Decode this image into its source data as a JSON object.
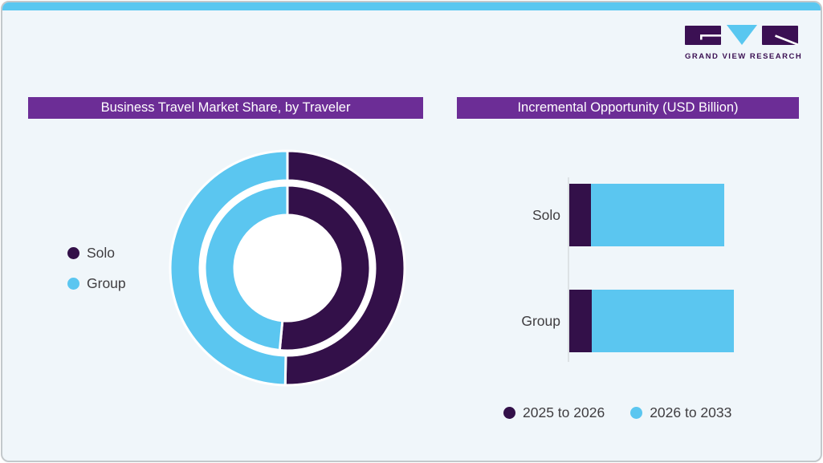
{
  "brand": {
    "name": "GRAND VIEW RESEARCH",
    "logo_icon": "gvr-logo"
  },
  "theme": {
    "background": "#f0f6fa",
    "card_border": "#c3c8cb",
    "top_strip": "#59c7f0",
    "header_bg": "#6c2d96",
    "header_text": "#ffffff",
    "dark_purple": "#331049",
    "light_blue": "#5bc6f0",
    "logo_purple": "#3b1053",
    "label_text": "#3f3d40",
    "axis_line": "#dde2e5"
  },
  "left_chart": {
    "title": "Business Travel Market Share, by Traveler",
    "legend": [
      {
        "label": "Solo",
        "color": "#331049"
      },
      {
        "label": "Group",
        "color": "#5bc6f0"
      }
    ]
  },
  "right_chart": {
    "title": "Incremental Opportunity (USD Billion)",
    "categories": [
      "Solo",
      "Group"
    ],
    "legend": [
      {
        "label": "2025 to 2026",
        "color": "#331049"
      },
      {
        "label": "2026 to 2033",
        "color": "#5bc6f0"
      }
    ]
  },
  "chart_data": [
    {
      "type": "donut",
      "title": "Business Travel Market Share, by Traveler",
      "segments": [
        "Solo",
        "Group"
      ],
      "colors": [
        "#331049",
        "#5bc6f0"
      ],
      "legend_position": "left",
      "rings": [
        {
          "name": "outer",
          "values": [
            50.3,
            49.7
          ]
        },
        {
          "name": "inner",
          "values": [
            51.5,
            48.5
          ]
        }
      ]
    },
    {
      "type": "stacked-bar-horizontal",
      "title": "Incremental Opportunity (USD Billion)",
      "categories": [
        "Solo",
        "Group"
      ],
      "series": [
        {
          "name": "2025 to 2026",
          "color": "#331049",
          "values": [
            13.3,
            13.8
          ]
        },
        {
          "name": "2026 to 2033",
          "color": "#5bc6f0",
          "values": [
            80.8,
            86.2
          ]
        }
      ],
      "xlim": [
        0,
        100
      ],
      "legend_position": "bottom"
    }
  ]
}
